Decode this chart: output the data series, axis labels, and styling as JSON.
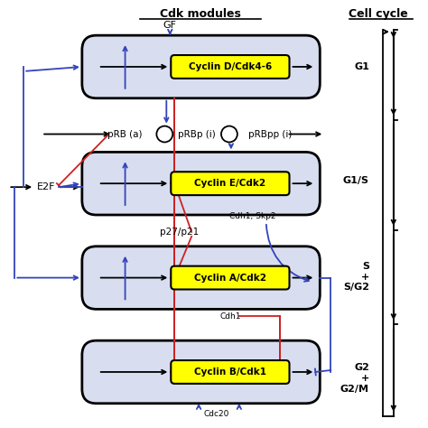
{
  "bg_color": "#ffffff",
  "box_fill": "#d8def0",
  "box_edge": "#000000",
  "yellow_fill": "#ffff00",
  "blue": "#3344bb",
  "red": "#cc2222",
  "black": "#000000",
  "modules_title": "Cdk modules",
  "cell_cycle_title": "Cell cycle",
  "cyclin_labels": [
    "Cyclin D/Cdk4-6",
    "Cyclin E/Cdk2",
    "Cyclin A/Cdk2",
    "Cyclin B/Cdk1"
  ],
  "phases": [
    "G1",
    "G1/S",
    "S\n+\nS/G2",
    "G2\n+\nG2/M"
  ],
  "prb_labels": [
    "pRB (a)",
    "pRBp (i)",
    "pRBpp (i)"
  ],
  "gf_label": "GF",
  "e2f_label": "E2F",
  "cdh1skp2_label": "Cdh1, Skp2",
  "p27p21_label": "p27/p21",
  "cdh1_label": "Cdh1",
  "cdc20_label": "Cdc20",
  "figsize": [
    4.74,
    4.74
  ],
  "dpi": 100
}
